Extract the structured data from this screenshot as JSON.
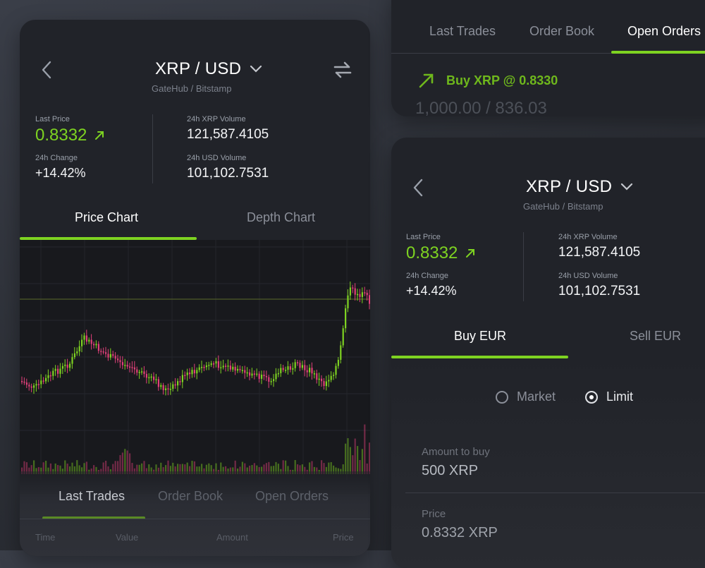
{
  "colors": {
    "accent": "#7ed321",
    "bg": "#212329",
    "candle_up": "#7ed321",
    "candle_down": "#e0407a"
  },
  "left_card": {
    "pair": "XRP / USD",
    "source": "GateHub / Bitstamp",
    "stats": {
      "last_price_label": "Last Price",
      "last_price": "0.8332",
      "change_label": "24h Change",
      "change": "+14.42%",
      "xrp_volume_label": "24h XRP Volume",
      "xrp_volume": "121,587.4105",
      "usd_volume_label": "24h USD Volume",
      "usd_volume": "101,102.7531"
    },
    "chart_tabs": [
      "Price Chart",
      "Depth Chart"
    ],
    "bottom_tabs": [
      "Last Trades",
      "Order Book",
      "Open Orders"
    ],
    "columns": [
      "Time",
      "Value",
      "Amount",
      "Price"
    ]
  },
  "top_right_card": {
    "tabs": [
      "Last Trades",
      "Order Book",
      "Open Orders"
    ],
    "order_label": "Buy XRP @ 0.8330",
    "order_amount": "1,000.00 / 836.03"
  },
  "bottom_right_card": {
    "pair": "XRP / USD",
    "source": "GateHub / Bitstamp",
    "stats": {
      "last_price_label": "Last Price",
      "last_price": "0.8332",
      "change_label": "24h Change",
      "change": "+14.42%",
      "xrp_volume_label": "24h XRP Volume",
      "xrp_volume": "121,587.4105",
      "usd_volume_label": "24h USD Volume",
      "usd_volume": "101,102.7531"
    },
    "tabs": [
      "Buy EUR",
      "Sell EUR"
    ],
    "order_types": [
      "Market",
      "Limit"
    ],
    "selected_order_type": "Limit",
    "amount_label": "Amount to buy",
    "amount_value": "500 XRP",
    "price_label": "Price",
    "price_value": "0.8332 XRP"
  }
}
